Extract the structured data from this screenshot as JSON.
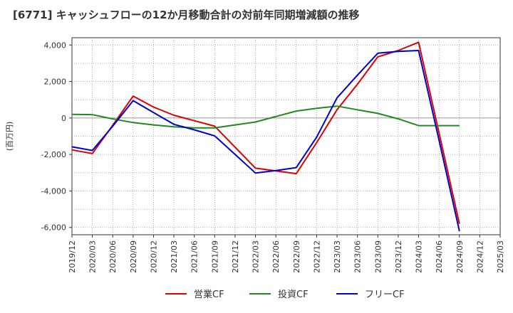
{
  "chart_data": {
    "type": "line",
    "title": "[6771]  キャッシュフローの12か月移動合計の対前年同期増減額の推移",
    "ylabel": "(百万円)",
    "xlabel": "",
    "ylim": [
      -6400,
      4400
    ],
    "yticks": [
      4000,
      2000,
      0,
      -2000,
      -4000,
      -6000
    ],
    "ytick_labels": [
      "4,000",
      "2,000",
      "0",
      "-2,000",
      "-4,000",
      "-6,000"
    ],
    "categories": [
      "2019/12",
      "2020/03",
      "2020/06",
      "2020/09",
      "2020/12",
      "2021/03",
      "2021/06",
      "2021/09",
      "2021/12",
      "2022/03",
      "2022/06",
      "2022/09",
      "2022/12",
      "2023/03",
      "2023/06",
      "2023/09",
      "2023/12",
      "2024/03",
      "2024/06",
      "2024/09",
      "2024/12",
      "2025/03"
    ],
    "grid": true,
    "legend_position": "bottom",
    "series": [
      {
        "name": "営業CF",
        "color": "#dd0000",
        "values": [
          -1750,
          -1950,
          -400,
          1200,
          600,
          150,
          -150,
          -450,
          -1600,
          -2750,
          -2900,
          -3050,
          -1350,
          450,
          1850,
          3350,
          3700,
          4150,
          -800,
          -5800,
          null,
          null
        ]
      },
      {
        "name": "投資CF",
        "color": "#228822",
        "values": [
          200,
          180,
          -50,
          -250,
          -380,
          -480,
          -540,
          -540,
          -380,
          -220,
          80,
          380,
          530,
          650,
          450,
          250,
          -50,
          -420,
          -420,
          -420,
          null,
          null
        ]
      },
      {
        "name": "フリーCF",
        "color": "#0000cc",
        "values": [
          -1580,
          -1780,
          -450,
          950,
          300,
          -350,
          -650,
          -980,
          -2000,
          -3020,
          -2880,
          -2720,
          -1050,
          1100,
          2350,
          3550,
          3650,
          3700,
          -1200,
          -6200,
          null,
          null
        ]
      }
    ]
  }
}
